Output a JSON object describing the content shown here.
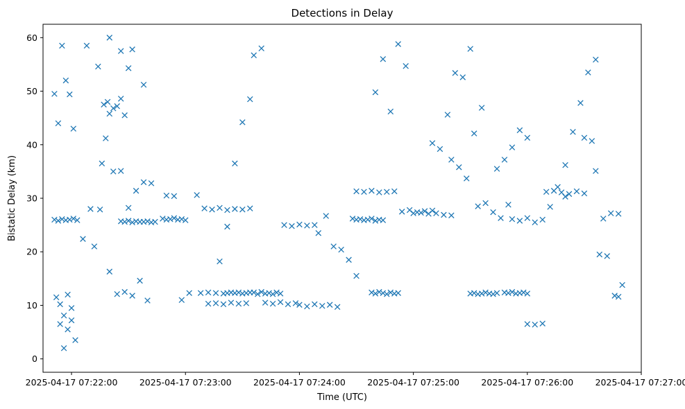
{
  "chart_data": {
    "type": "scatter",
    "title": "Detections in Delay",
    "xlabel": "Time (UTC)",
    "ylabel": "Bistatic Delay (km)",
    "marker": "x",
    "color": "#1f77b4",
    "grid": false,
    "legend": "none",
    "x_axis_type": "datetime",
    "xlim": [
      "2025-04-17 07:21:45",
      "2025-04-17 07:27:00"
    ],
    "ylim": [
      -2.5,
      62.5
    ],
    "xticks": [
      "2025-04-17 07:22:00",
      "2025-04-17 07:23:00",
      "2025-04-17 07:24:00",
      "2025-04-17 07:25:00",
      "2025-04-17 07:26:00",
      "2025-04-17 07:27:00"
    ],
    "yticks": [
      0,
      10,
      20,
      30,
      40,
      50,
      60
    ],
    "series": [
      {
        "x": [
          "2025-04-17 07:21:51",
          "2025-04-17 07:21:53",
          "2025-04-17 07:21:55",
          "2025-04-17 07:21:57",
          "2025-04-17 07:21:59",
          "2025-04-17 07:22:01",
          "2025-04-17 07:22:03",
          "2025-04-17 07:21:52",
          "2025-04-17 07:21:54",
          "2025-04-17 07:21:56",
          "2025-04-17 07:21:58",
          "2025-04-17 07:22:00",
          "2025-04-17 07:21:51",
          "2025-04-17 07:21:53",
          "2025-04-17 07:21:55",
          "2025-04-17 07:21:57",
          "2025-04-17 07:21:59",
          "2025-04-17 07:22:01",
          "2025-04-17 07:21:54",
          "2025-04-17 07:21:56",
          "2025-04-17 07:21:58",
          "2025-04-17 07:22:00",
          "2025-04-17 07:22:02",
          "2025-04-17 07:22:06",
          "2025-04-17 07:22:10",
          "2025-04-17 07:22:12",
          "2025-04-17 07:22:15",
          "2025-04-17 07:22:16",
          "2025-04-17 07:22:18",
          "2025-04-17 07:22:20",
          "2025-04-17 07:22:17",
          "2025-04-17 07:22:19",
          "2025-04-17 07:22:22",
          "2025-04-17 07:22:24",
          "2025-04-17 07:22:26",
          "2025-04-17 07:22:28",
          "2025-04-17 07:22:30",
          "2025-04-17 07:22:26",
          "2025-04-17 07:22:28",
          "2025-04-17 07:22:30",
          "2025-04-17 07:22:32",
          "2025-04-17 07:22:34",
          "2025-04-17 07:22:36",
          "2025-04-17 07:22:38",
          "2025-04-17 07:22:40",
          "2025-04-17 07:22:42",
          "2025-04-17 07:22:44",
          "2025-04-17 07:22:20",
          "2025-04-17 07:22:24",
          "2025-04-17 07:22:28",
          "2025-04-17 07:22:32",
          "2025-04-17 07:22:36",
          "2025-04-17 07:22:40",
          "2025-04-17 07:22:22",
          "2025-04-17 07:22:26",
          "2025-04-17 07:22:30",
          "2025-04-17 07:22:34",
          "2025-04-17 07:22:38",
          "2025-04-17 07:22:42",
          "2025-04-17 07:22:08",
          "2025-04-17 07:22:14",
          "2025-04-17 07:22:20",
          "2025-04-17 07:22:26",
          "2025-04-17 07:22:32",
          "2025-04-17 07:22:38",
          "2025-04-17 07:22:48",
          "2025-04-17 07:22:50",
          "2025-04-17 07:22:52",
          "2025-04-17 07:22:54",
          "2025-04-17 07:22:56",
          "2025-04-17 07:22:58",
          "2025-04-17 07:23:00",
          "2025-04-17 07:22:50",
          "2025-04-17 07:22:54",
          "2025-04-17 07:22:58",
          "2025-04-17 07:23:02",
          "2025-04-17 07:23:06",
          "2025-04-17 07:23:08",
          "2025-04-17 07:23:12",
          "2025-04-17 07:23:16",
          "2025-04-17 07:23:20",
          "2025-04-17 07:23:22",
          "2025-04-17 07:23:24",
          "2025-04-17 07:23:26",
          "2025-04-17 07:23:28",
          "2025-04-17 07:23:30",
          "2025-04-17 07:23:32",
          "2025-04-17 07:23:34",
          "2025-04-17 07:23:10",
          "2025-04-17 07:23:14",
          "2025-04-17 07:23:18",
          "2025-04-17 07:23:22",
          "2025-04-17 07:23:26",
          "2025-04-17 07:23:30",
          "2025-04-17 07:23:34",
          "2025-04-17 07:23:12",
          "2025-04-17 07:23:16",
          "2025-04-17 07:23:20",
          "2025-04-17 07:23:24",
          "2025-04-17 07:23:28",
          "2025-04-17 07:23:32",
          "2025-04-17 07:23:18",
          "2025-04-17 07:23:22",
          "2025-04-17 07:23:26",
          "2025-04-17 07:23:30",
          "2025-04-17 07:23:34",
          "2025-04-17 07:23:36",
          "2025-04-17 07:23:40",
          "2025-04-17 07:23:36",
          "2025-04-17 07:23:38",
          "2025-04-17 07:23:40",
          "2025-04-17 07:23:42",
          "2025-04-17 07:23:44",
          "2025-04-17 07:23:46",
          "2025-04-17 07:23:48",
          "2025-04-17 07:23:50",
          "2025-04-17 07:23:42",
          "2025-04-17 07:23:46",
          "2025-04-17 07:23:50",
          "2025-04-17 07:23:54",
          "2025-04-17 07:23:58",
          "2025-04-17 07:23:52",
          "2025-04-17 07:23:56",
          "2025-04-17 07:24:00",
          "2025-04-17 07:24:04",
          "2025-04-17 07:24:08",
          "2025-04-17 07:24:00",
          "2025-04-17 07:24:04",
          "2025-04-17 07:24:08",
          "2025-04-17 07:24:12",
          "2025-04-17 07:24:16",
          "2025-04-17 07:24:20",
          "2025-04-17 07:24:10",
          "2025-04-17 07:24:14",
          "2025-04-17 07:24:18",
          "2025-04-17 07:24:22",
          "2025-04-17 07:24:26",
          "2025-04-17 07:24:30",
          "2025-04-17 07:24:28",
          "2025-04-17 07:24:30",
          "2025-04-17 07:24:32",
          "2025-04-17 07:24:34",
          "2025-04-17 07:24:36",
          "2025-04-17 07:24:38",
          "2025-04-17 07:24:40",
          "2025-04-17 07:24:42",
          "2025-04-17 07:24:44",
          "2025-04-17 07:24:30",
          "2025-04-17 07:24:34",
          "2025-04-17 07:24:38",
          "2025-04-17 07:24:42",
          "2025-04-17 07:24:46",
          "2025-04-17 07:24:50",
          "2025-04-17 07:24:38",
          "2025-04-17 07:24:40",
          "2025-04-17 07:24:42",
          "2025-04-17 07:24:44",
          "2025-04-17 07:24:46",
          "2025-04-17 07:24:48",
          "2025-04-17 07:24:50",
          "2025-04-17 07:24:52",
          "2025-04-17 07:24:40",
          "2025-04-17 07:24:44",
          "2025-04-17 07:24:48",
          "2025-04-17 07:24:52",
          "2025-04-17 07:24:56",
          "2025-04-17 07:24:54",
          "2025-04-17 07:24:58",
          "2025-04-17 07:25:02",
          "2025-04-17 07:25:06",
          "2025-04-17 07:25:10",
          "2025-04-17 07:25:00",
          "2025-04-17 07:25:04",
          "2025-04-17 07:25:08",
          "2025-04-17 07:25:12",
          "2025-04-17 07:25:16",
          "2025-04-17 07:25:20",
          "2025-04-17 07:25:10",
          "2025-04-17 07:25:14",
          "2025-04-17 07:25:18",
          "2025-04-17 07:25:22",
          "2025-04-17 07:25:26",
          "2025-04-17 07:25:30",
          "2025-04-17 07:25:20",
          "2025-04-17 07:25:24",
          "2025-04-17 07:25:28",
          "2025-04-17 07:25:32",
          "2025-04-17 07:25:36",
          "2025-04-17 07:25:30",
          "2025-04-17 07:25:32",
          "2025-04-17 07:25:34",
          "2025-04-17 07:25:36",
          "2025-04-17 07:25:38",
          "2025-04-17 07:25:40",
          "2025-04-17 07:25:42",
          "2025-04-17 07:25:44",
          "2025-04-17 07:25:34",
          "2025-04-17 07:25:38",
          "2025-04-17 07:25:42",
          "2025-04-17 07:25:46",
          "2025-04-17 07:25:50",
          "2025-04-17 07:25:44",
          "2025-04-17 07:25:48",
          "2025-04-17 07:25:52",
          "2025-04-17 07:25:56",
          "2025-04-17 07:26:00",
          "2025-04-17 07:25:48",
          "2025-04-17 07:25:50",
          "2025-04-17 07:25:52",
          "2025-04-17 07:25:54",
          "2025-04-17 07:25:56",
          "2025-04-17 07:25:58",
          "2025-04-17 07:26:00",
          "2025-04-17 07:25:52",
          "2025-04-17 07:25:56",
          "2025-04-17 07:26:00",
          "2025-04-17 07:26:04",
          "2025-04-17 07:26:08",
          "2025-04-17 07:26:00",
          "2025-04-17 07:26:04",
          "2025-04-17 07:26:08",
          "2025-04-17 07:26:12",
          "2025-04-17 07:26:16",
          "2025-04-17 07:26:20",
          "2025-04-17 07:26:10",
          "2025-04-17 07:26:14",
          "2025-04-17 07:26:18",
          "2025-04-17 07:26:22",
          "2025-04-17 07:26:26",
          "2025-04-17 07:26:30",
          "2025-04-17 07:26:20",
          "2025-04-17 07:26:24",
          "2025-04-17 07:26:28",
          "2025-04-17 07:26:32",
          "2025-04-17 07:26:36",
          "2025-04-17 07:26:30",
          "2025-04-17 07:26:34",
          "2025-04-17 07:26:38",
          "2025-04-17 07:26:42",
          "2025-04-17 07:26:46",
          "2025-04-17 07:26:48",
          "2025-04-17 07:26:36",
          "2025-04-17 07:26:40",
          "2025-04-17 07:26:44",
          "2025-04-17 07:26:48",
          "2025-04-17 07:26:50"
        ],
        "y": [
          26,
          25.8,
          26.1,
          25.9,
          26,
          26.2,
          25.9,
          11.5,
          10.2,
          8.1,
          12,
          9.5,
          49.5,
          44,
          58.5,
          52,
          49.4,
          43,
          6.5,
          2,
          5.5,
          7.2,
          3.5,
          22.4,
          28,
          21,
          27.9,
          36.5,
          41.2,
          45.8,
          47.5,
          48,
          46.8,
          47.2,
          48.6,
          45.5,
          54.3,
          25.7,
          25.6,
          25.8,
          25.5,
          25.7,
          25.6,
          25.6,
          25.7,
          25.5,
          25.6,
          16.3,
          12.1,
          12.5,
          11.8,
          14.6,
          10.9,
          35,
          35.1,
          28.2,
          31.4,
          33,
          32.8,
          58.5,
          54.6,
          60,
          57.5,
          57.8,
          51.2,
          26.2,
          26,
          26.1,
          26.3,
          26,
          26.1,
          25.9,
          30.5,
          30.4,
          11,
          12.3,
          30.6,
          12.3,
          12.4,
          12.3,
          12.2,
          12.3,
          12.4,
          12.3,
          12.4,
          12.2,
          12.3,
          12.4,
          28.1,
          27.9,
          28.2,
          27.8,
          28,
          27.9,
          28.1,
          10.3,
          10.4,
          10.2,
          10.5,
          10.3,
          10.4,
          18.2,
          24.7,
          36.5,
          44.2,
          48.5,
          56.7,
          58,
          12.4,
          12.1,
          12.5,
          12.2,
          12.3,
          12.1,
          12.4,
          12.2,
          10.5,
          10.3,
          10.6,
          10.2,
          10.4,
          25,
          24.8,
          25.1,
          24.9,
          25,
          10.1,
          9.8,
          10.2,
          9.9,
          10.1,
          9.7,
          23.5,
          26.7,
          21,
          20.4,
          18.5,
          15.5,
          26.2,
          26,
          26.1,
          25.9,
          26,
          26.2,
          25.8,
          26,
          25.9,
          31.3,
          31.2,
          31.4,
          31.1,
          31.2,
          31.3,
          12.4,
          12.2,
          12.5,
          12.3,
          12.1,
          12.4,
          12.2,
          12.3,
          49.8,
          56,
          46.2,
          58.8,
          54.7,
          27.5,
          27.8,
          27.4,
          27.6,
          27.7,
          27.2,
          27.3,
          27.1,
          27.2,
          26.9,
          26.8,
          40.3,
          39.2,
          45.6,
          53.4,
          52.6,
          57.9,
          37.2,
          35.8,
          33.7,
          42.1,
          46.9,
          12.2,
          12.3,
          12.1,
          12.2,
          12.4,
          12.2,
          12.1,
          12.3,
          28.5,
          29.1,
          27.4,
          26.3,
          28.8,
          35.5,
          37.2,
          39.5,
          42.7,
          41.3,
          12.4,
          12.3,
          12.5,
          12.2,
          12.3,
          12.4,
          12.2,
          26.1,
          25.8,
          26.3,
          25.5,
          26,
          6.5,
          6.4,
          6.6,
          28.4,
          32.1,
          30.3,
          31.2,
          31.4,
          31.1,
          30.8,
          31.3,
          30.9,
          36.2,
          42.4,
          47.8,
          53.5,
          55.9,
          41.3,
          40.7,
          19.5,
          19.2,
          11.8,
          11.6,
          35.1,
          26.2,
          27.2,
          27.1,
          13.8
        ]
      }
    ]
  }
}
